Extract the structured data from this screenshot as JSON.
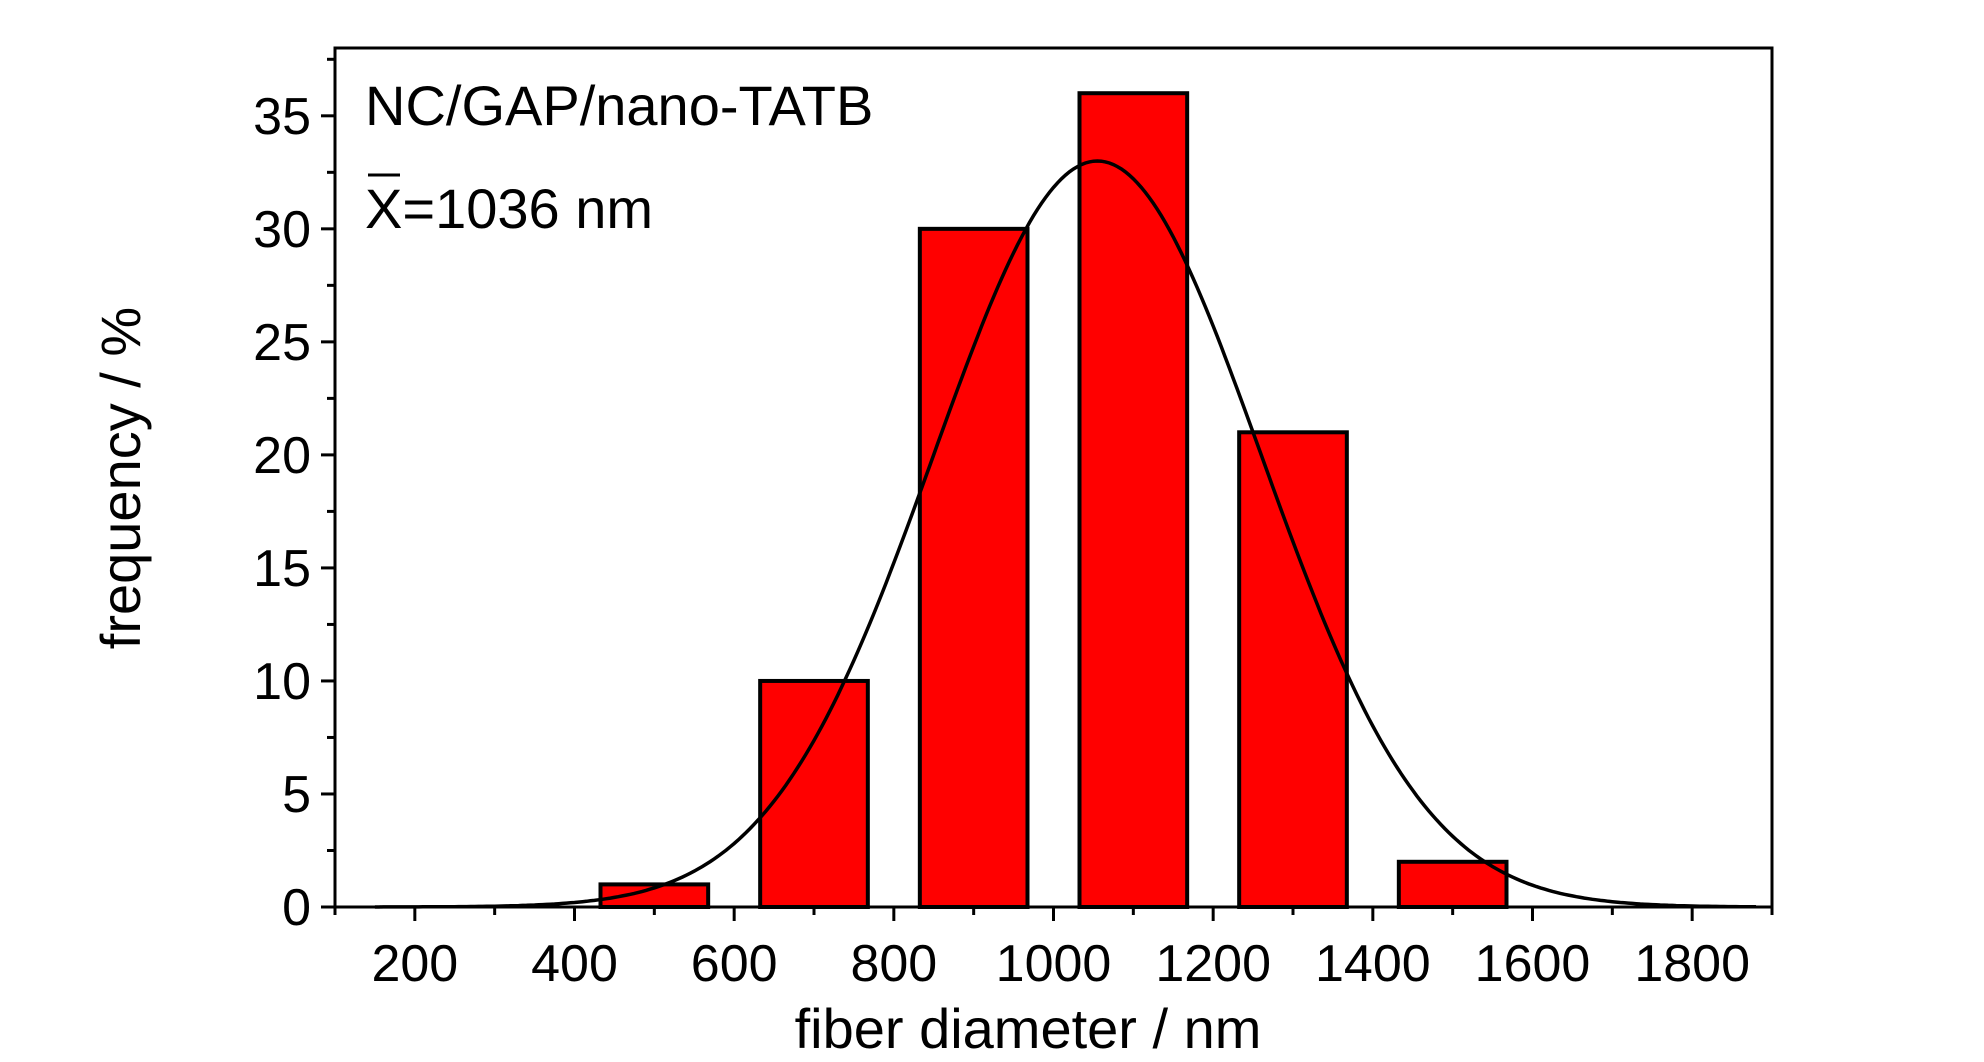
{
  "chart_data": {
    "type": "bar",
    "title": "",
    "xlabel": "fiber diameter / nm",
    "ylabel": "frequency / %",
    "xlim": [
      100,
      1900
    ],
    "ylim": [
      0,
      38
    ],
    "x_major_ticks": [
      200,
      400,
      600,
      800,
      1000,
      1200,
      1400,
      1600,
      1800
    ],
    "x_minor_ticks": [
      100,
      300,
      500,
      700,
      900,
      1100,
      1300,
      1500,
      1700,
      1900
    ],
    "y_major_ticks": [
      0,
      5,
      10,
      15,
      20,
      25,
      30,
      35
    ],
    "grid": false,
    "bar_color": "#ff0000",
    "bars": [
      {
        "x": 500,
        "value": 1
      },
      {
        "x": 700,
        "value": 10
      },
      {
        "x": 900,
        "value": 30
      },
      {
        "x": 1100,
        "value": 36
      },
      {
        "x": 1300,
        "value": 21
      },
      {
        "x": 1500,
        "value": 2
      }
    ],
    "bin_width": 200,
    "fit_curve": {
      "type": "gaussian",
      "mean": 1055,
      "sigma": 205,
      "peak": 33
    },
    "annotations": {
      "sample": "NC/GAP/nano-TATB",
      "mean_symbol": "X",
      "mean_text": "=1036 nm"
    }
  }
}
